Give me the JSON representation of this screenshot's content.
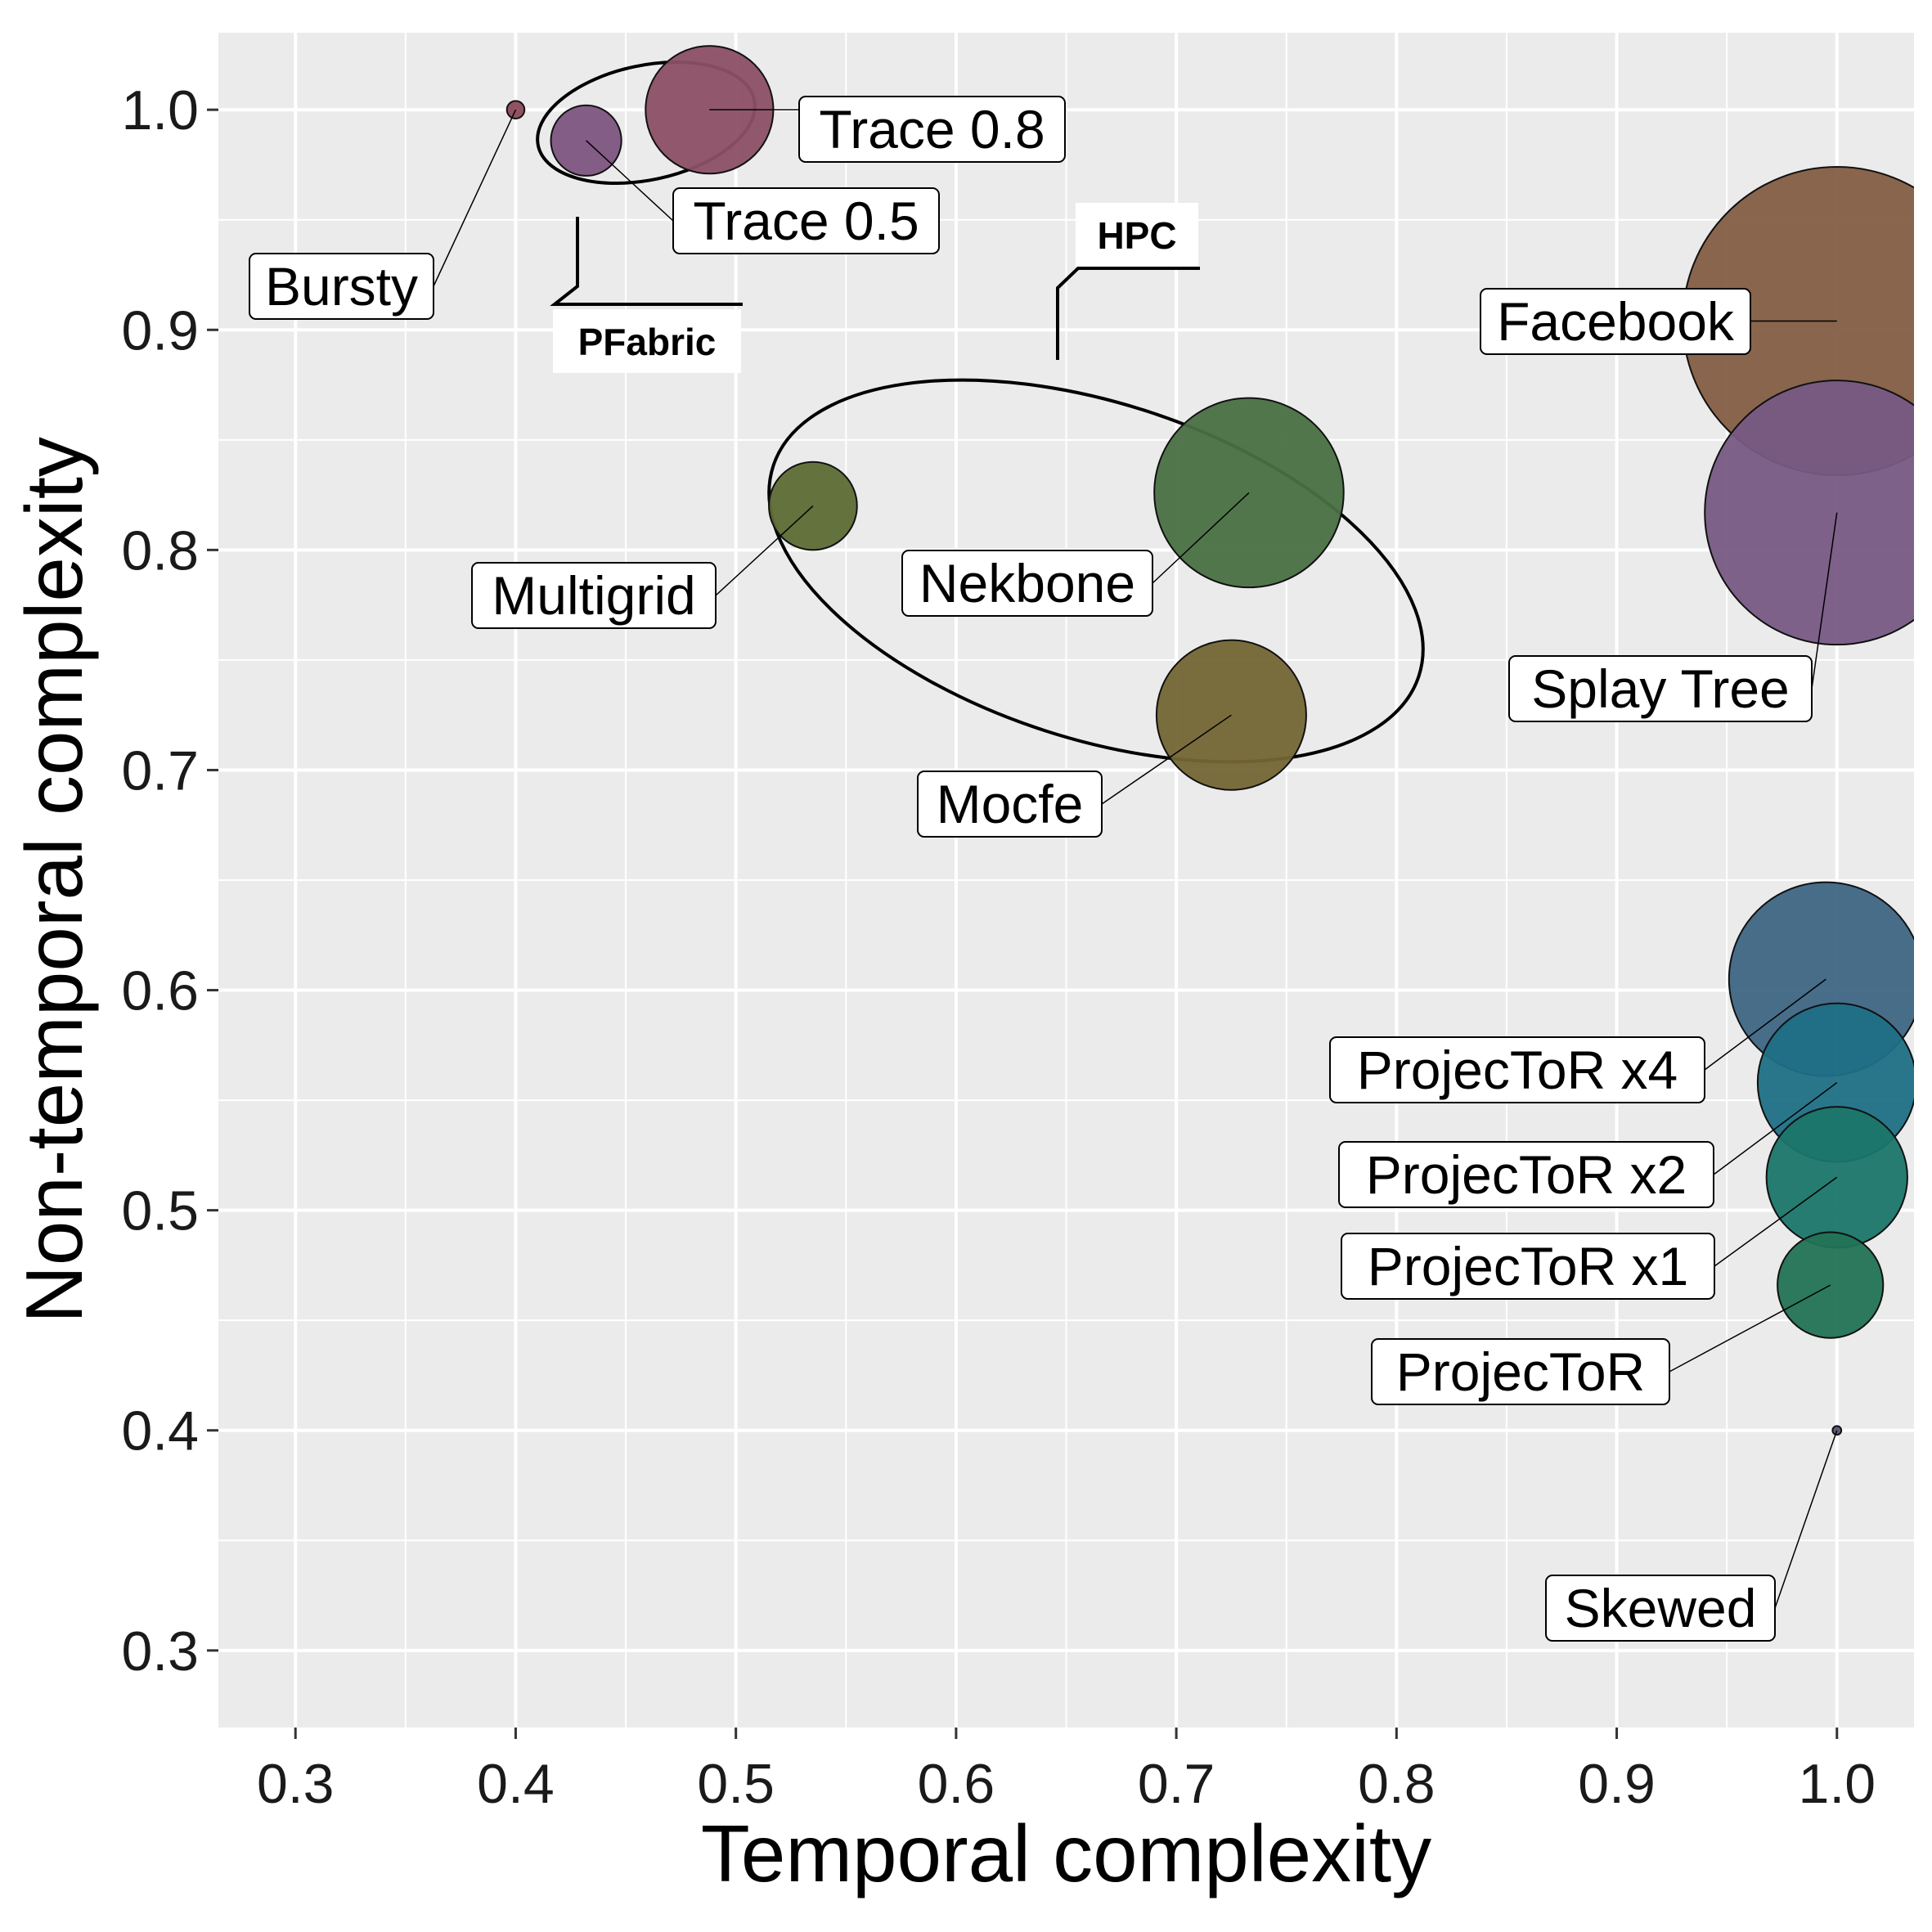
{
  "chart_data": {
    "type": "scatter",
    "subtype": "bubble",
    "title": "",
    "xlabel": "Temporal complexity",
    "ylabel": "Non-temporal complexity",
    "xlim": [
      0.265,
      1.035
    ],
    "ylim": [
      0.265,
      1.035
    ],
    "xticks": [
      "0.3",
      "0.4",
      "0.5",
      "0.6",
      "0.7",
      "0.8",
      "0.9",
      "1.0"
    ],
    "yticks": [
      "0.3",
      "0.4",
      "0.5",
      "0.6",
      "0.7",
      "0.8",
      "0.9",
      "1.0"
    ],
    "grid": true,
    "legend": "none",
    "panel_background": "#EBEBEB",
    "points": [
      {
        "name": "Bursty",
        "x": 0.4,
        "y": 1.0,
        "size": 0.004,
        "color": "#8B4A5A",
        "label_anchor": "left"
      },
      {
        "name": "Trace 0.8",
        "x": 0.488,
        "y": 1.0,
        "size": 0.029,
        "color": "#8B4F66",
        "label_anchor": "right"
      },
      {
        "name": "Trace 0.5",
        "x": 0.432,
        "y": 0.986,
        "size": 0.016,
        "color": "#7D5581",
        "label_anchor": "right"
      },
      {
        "name": "Multigrid",
        "x": 0.535,
        "y": 0.82,
        "size": 0.02,
        "color": "#5D6B35",
        "label_anchor": "left"
      },
      {
        "name": "Nekbone",
        "x": 0.733,
        "y": 0.826,
        "size": 0.043,
        "color": "#4A7043",
        "label_anchor": "left"
      },
      {
        "name": "Mocfe",
        "x": 0.725,
        "y": 0.725,
        "size": 0.034,
        "color": "#746634",
        "label_anchor": "left"
      },
      {
        "name": "Facebook",
        "x": 1.0,
        "y": 0.904,
        "size": 0.07,
        "color": "#835E43",
        "label_anchor": "left"
      },
      {
        "name": "Splay Tree",
        "x": 1.0,
        "y": 0.817,
        "size": 0.06,
        "color": "#775A84",
        "label_anchor": "left"
      },
      {
        "name": "ProjecToR x4",
        "x": 0.995,
        "y": 0.605,
        "size": 0.044,
        "color": "#3E6684",
        "label_anchor": "left"
      },
      {
        "name": "ProjecToR x2",
        "x": 1.0,
        "y": 0.558,
        "size": 0.036,
        "color": "#1F7086",
        "label_anchor": "left"
      },
      {
        "name": "ProjecToR x1",
        "x": 1.0,
        "y": 0.515,
        "size": 0.032,
        "color": "#1B7669",
        "label_anchor": "left"
      },
      {
        "name": "ProjecToR",
        "x": 0.997,
        "y": 0.466,
        "size": 0.024,
        "color": "#227355",
        "label_anchor": "left"
      },
      {
        "name": "Skewed",
        "x": 1.0,
        "y": 0.4,
        "size": 0.002,
        "color": "#555577",
        "label_anchor": "left"
      }
    ],
    "groups": [
      {
        "name": "PFabric",
        "members": [
          "Trace 0.8",
          "Trace 0.5"
        ]
      },
      {
        "name": "HPC",
        "members": [
          "Multigrid",
          "Nekbone",
          "Mocfe"
        ]
      }
    ]
  }
}
